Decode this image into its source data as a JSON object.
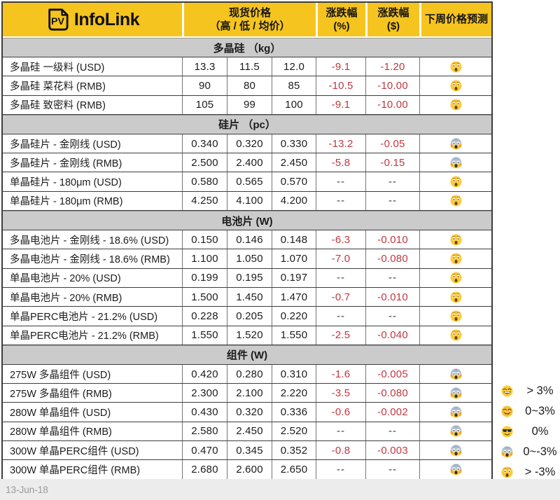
{
  "logo": {
    "pv": "PV",
    "name": "InfoLink"
  },
  "header": {
    "spot_price_line1": "现货价格",
    "spot_price_line2": "（高 / 低 / 均价）",
    "change_pct_line1": "涨跌幅",
    "change_pct_line2": "(%)",
    "change_usd_line1": "涨跌幅",
    "change_usd_line2": "($)",
    "forecast": "下周价格预测"
  },
  "sections": [
    {
      "title": "多晶硅 （kg）",
      "rows": [
        {
          "name": "多晶硅 一级料 (USD)",
          "high": "13.3",
          "low": "11.5",
          "avg": "12.0",
          "pct": "-9.1",
          "abs": "-1.20",
          "forecast": "astonished"
        },
        {
          "name": "多晶硅 菜花料 (RMB)",
          "high": "90",
          "low": "80",
          "avg": "85",
          "pct": "-10.5",
          "abs": "-10.00",
          "forecast": "astonished"
        },
        {
          "name": "多晶硅 致密料 (RMB)",
          "high": "105",
          "low": "99",
          "avg": "100",
          "pct": "-9.1",
          "abs": "-10.00",
          "forecast": "astonished"
        }
      ]
    },
    {
      "title": "硅片 （pc）",
      "rows": [
        {
          "name": "多晶硅片 - 金刚线 (USD)",
          "high": "0.340",
          "low": "0.320",
          "avg": "0.330",
          "pct": "-13.2",
          "abs": "-0.05",
          "forecast": "scream"
        },
        {
          "name": "多晶硅片 - 金刚线 (RMB)",
          "high": "2.500",
          "low": "2.400",
          "avg": "2.450",
          "pct": "-5.8",
          "abs": "-0.15",
          "forecast": "scream"
        },
        {
          "name": "单晶硅片 - 180μm (USD)",
          "high": "0.580",
          "low": "0.565",
          "avg": "0.570",
          "pct": "--",
          "abs": "--",
          "forecast": "astonished"
        },
        {
          "name": "单晶硅片 - 180μm (RMB)",
          "high": "4.250",
          "low": "4.100",
          "avg": "4.200",
          "pct": "--",
          "abs": "--",
          "forecast": "astonished"
        }
      ]
    },
    {
      "title": "电池片 (W)",
      "rows": [
        {
          "name": "多晶电池片 - 金刚线 - 18.6% (USD)",
          "high": "0.150",
          "low": "0.146",
          "avg": "0.148",
          "pct": "-6.3",
          "abs": "-0.010",
          "forecast": "astonished"
        },
        {
          "name": "多晶电池片 - 金刚线 - 18.6% (RMB)",
          "high": "1.100",
          "low": "1.050",
          "avg": "1.070",
          "pct": "-7.0",
          "abs": "-0.080",
          "forecast": "astonished"
        },
        {
          "name": "单晶电池片 - 20% (USD)",
          "high": "0.199",
          "low": "0.195",
          "avg": "0.197",
          "pct": "--",
          "abs": "--",
          "forecast": "astonished"
        },
        {
          "name": "单晶电池片 - 20% (RMB)",
          "high": "1.500",
          "low": "1.450",
          "avg": "1.470",
          "pct": "-0.7",
          "abs": "-0.010",
          "forecast": "astonished"
        },
        {
          "name": "单晶PERC电池片 - 21.2% (USD)",
          "high": "0.228",
          "low": "0.205",
          "avg": "0.220",
          "pct": "--",
          "abs": "--",
          "forecast": "astonished"
        },
        {
          "name": "单晶PERC电池片 - 21.2% (RMB)",
          "high": "1.550",
          "low": "1.520",
          "avg": "1.550",
          "pct": "-2.5",
          "abs": "-0.040",
          "forecast": "astonished"
        }
      ]
    },
    {
      "title": "组件 (W)",
      "rows": [
        {
          "name": "275W 多晶组件 (USD)",
          "high": "0.420",
          "low": "0.280",
          "avg": "0.310",
          "pct": "-1.6",
          "abs": "-0.005",
          "forecast": "scream"
        },
        {
          "name": "275W 多晶组件 (RMB)",
          "high": "2.300",
          "low": "2.100",
          "avg": "2.220",
          "pct": "-3.5",
          "abs": "-0.080",
          "forecast": "scream"
        },
        {
          "name": "280W 单晶组件 (USD)",
          "high": "0.430",
          "low": "0.320",
          "avg": "0.336",
          "pct": "-0.6",
          "abs": "-0.002",
          "forecast": "scream"
        },
        {
          "name": "280W 单晶组件 (RMB)",
          "high": "2.580",
          "low": "2.450",
          "avg": "2.520",
          "pct": "--",
          "abs": "--",
          "forecast": "scream"
        },
        {
          "name": "300W 单晶PERC组件 (USD)",
          "high": "0.470",
          "low": "0.345",
          "avg": "0.352",
          "pct": "-0.8",
          "abs": "-0.003",
          "forecast": "scream"
        },
        {
          "name": "300W 单晶PERC组件 (RMB)",
          "high": "2.680",
          "low": "2.600",
          "avg": "2.650",
          "pct": "--",
          "abs": "--",
          "forecast": "scream"
        }
      ]
    }
  ],
  "legend": {
    "items": [
      {
        "emoji": "beaming",
        "label": "> 3%"
      },
      {
        "emoji": "smiling",
        "label": "0~3%"
      },
      {
        "emoji": "sunglasses",
        "label": "0%"
      },
      {
        "emoji": "scream",
        "label": "0~-3%"
      },
      {
        "emoji": "astonished",
        "label": "> -3%"
      }
    ]
  },
  "footer": {
    "date": "13-Jun-18"
  },
  "colors": {
    "brand_yellow": "#F6C41F",
    "section_gray": "#CBCBCB",
    "negative_red": "#C13840"
  }
}
